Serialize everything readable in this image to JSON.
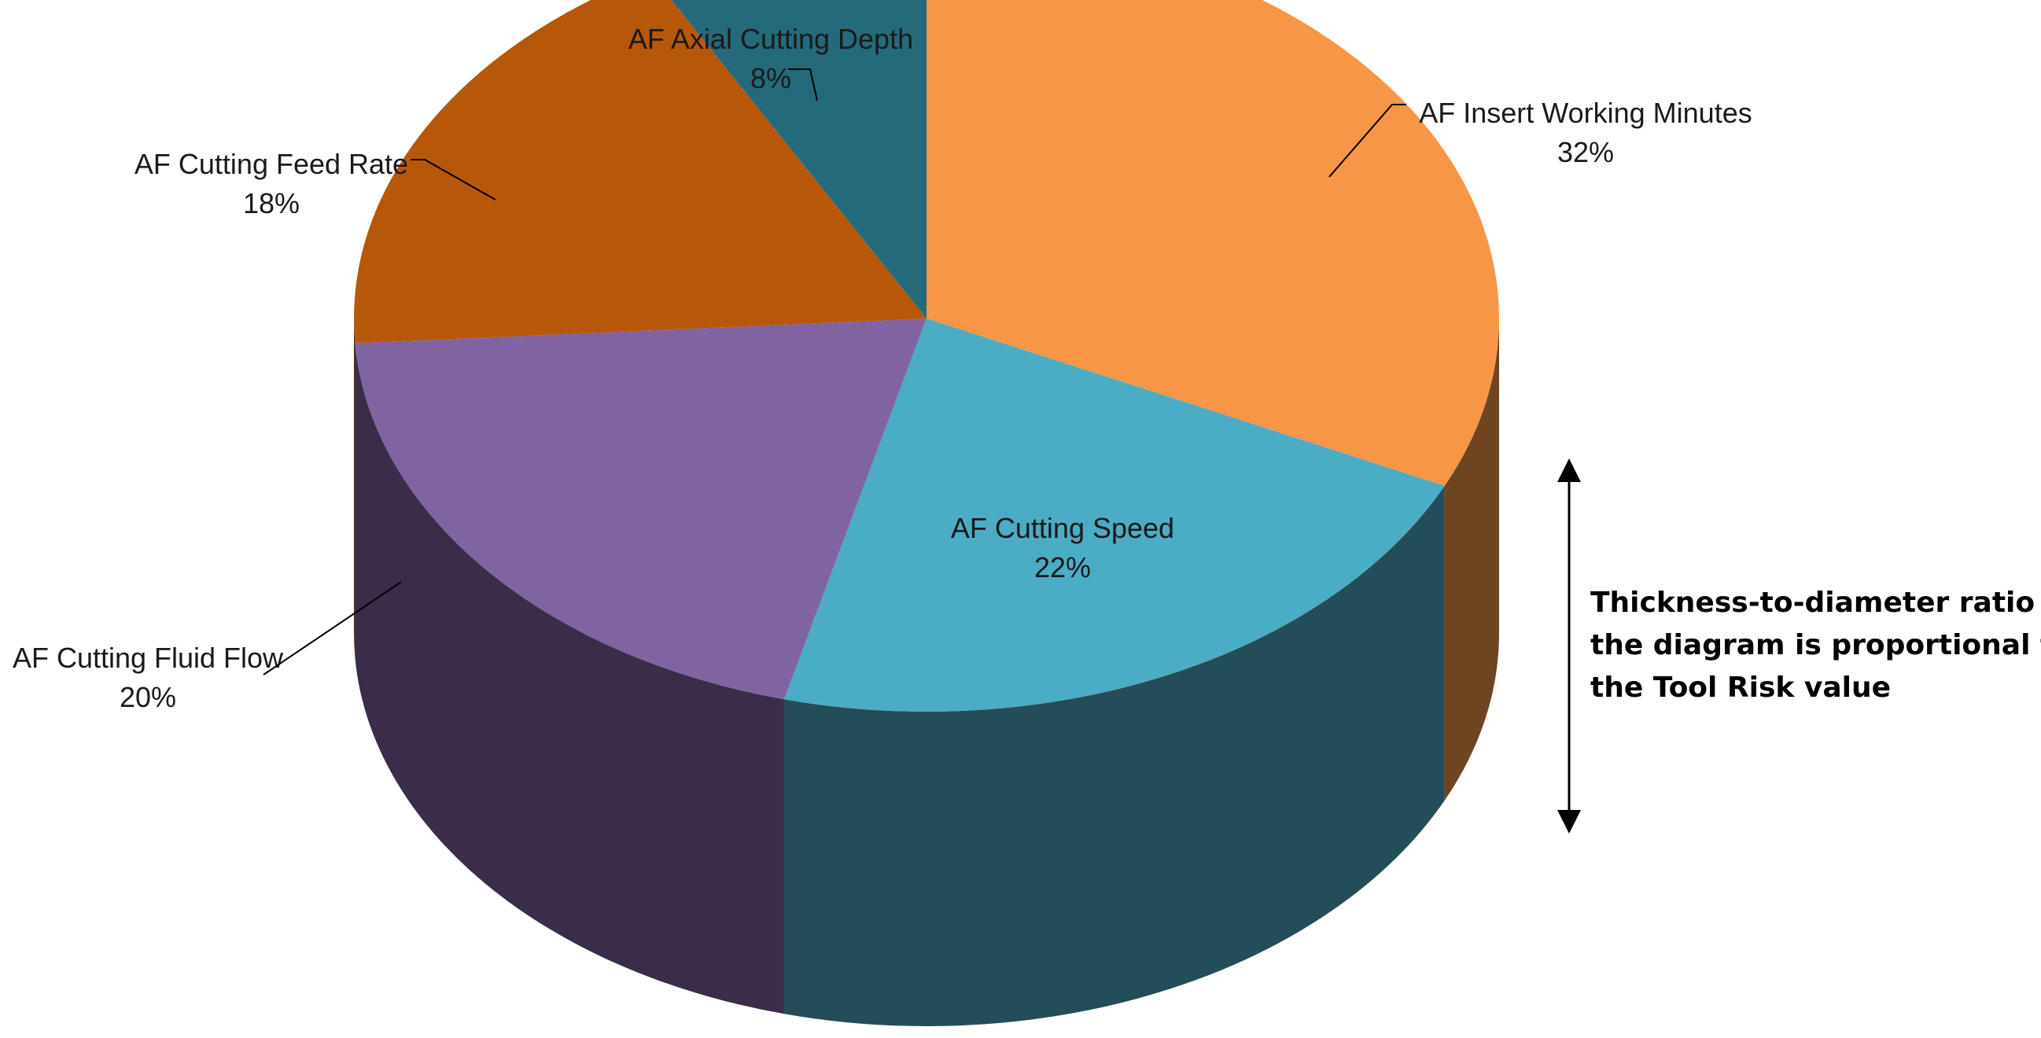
{
  "chart_data": {
    "type": "pie",
    "style": "3d",
    "slices": [
      {
        "label": "AF Insert Working Minutes",
        "value": 32,
        "percent": "32%",
        "color": "#F79646"
      },
      {
        "label": "AF Cutting Speed",
        "value": 22,
        "percent": "22%",
        "color": "#4BACC6"
      },
      {
        "label": "AF Cutting Fluid Flow",
        "value": 20,
        "percent": "20%",
        "color": "#8064A2"
      },
      {
        "label": "AF Cutting Feed Rate",
        "value": 18,
        "percent": "18%",
        "color": "#B7570A"
      },
      {
        "label": "AF Axial Cutting Depth",
        "value": 8,
        "percent": "8%",
        "color": "#256A7A"
      }
    ],
    "legend": "none",
    "annotation": {
      "lines": [
        "Thickness-to-diameter ratio in",
        "the diagram is proportional to",
        "the Tool Risk value"
      ]
    }
  }
}
